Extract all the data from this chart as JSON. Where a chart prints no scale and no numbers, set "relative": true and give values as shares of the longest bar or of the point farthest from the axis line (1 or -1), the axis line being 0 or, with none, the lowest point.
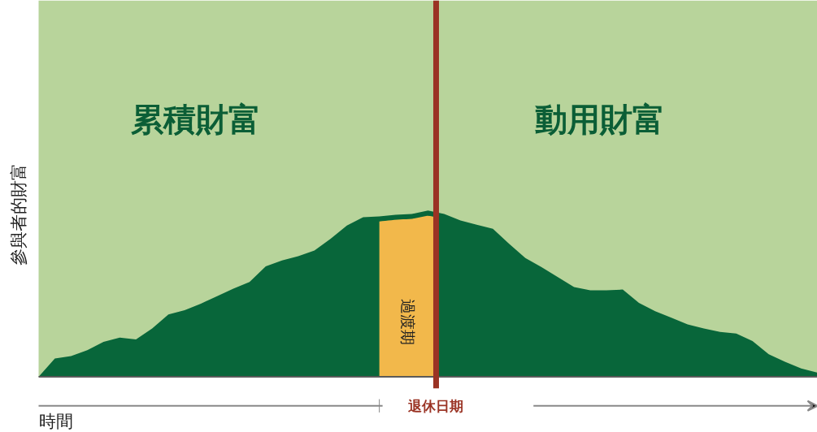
{
  "chart_data": {
    "type": "area",
    "relative": true,
    "xlabel": "時間",
    "ylabel": "參與者的財富",
    "categories": [
      null,
      null,
      null,
      null,
      null,
      null,
      null,
      null,
      null,
      null,
      null,
      null,
      null,
      null,
      null,
      null,
      null,
      null,
      null,
      null,
      null,
      null,
      null,
      null,
      null,
      null,
      null,
      null,
      null,
      null,
      null,
      null,
      null,
      null,
      null,
      null,
      null,
      null,
      null,
      null,
      null,
      null,
      null,
      null,
      null,
      null,
      null,
      null,
      null
    ],
    "series": [
      {
        "color": "#08663a",
        "values": [
          0,
          0.11,
          0.125,
          0.16,
          0.21,
          0.235,
          0.225,
          0.29,
          0.375,
          0.4,
          0.44,
          0.485,
          0.53,
          0.57,
          0.665,
          0.7,
          0.725,
          0.76,
          0.83,
          0.91,
          0.96,
          0.965,
          0.975,
          0.98,
          1,
          0.98,
          0.94,
          0.915,
          0.89,
          0.8,
          0.715,
          0.66,
          0.6,
          0.54,
          0.52,
          0.52,
          0.525,
          0.445,
          0.395,
          0.355,
          0.315,
          0.29,
          0.27,
          0.26,
          0.215,
          0.135,
          0.09,
          0.05,
          0.025
        ]
      }
    ],
    "annotations": [
      "累積財富",
      "動用財富",
      "過渡期",
      "退休日期"
    ],
    "grid": false
  }
}
